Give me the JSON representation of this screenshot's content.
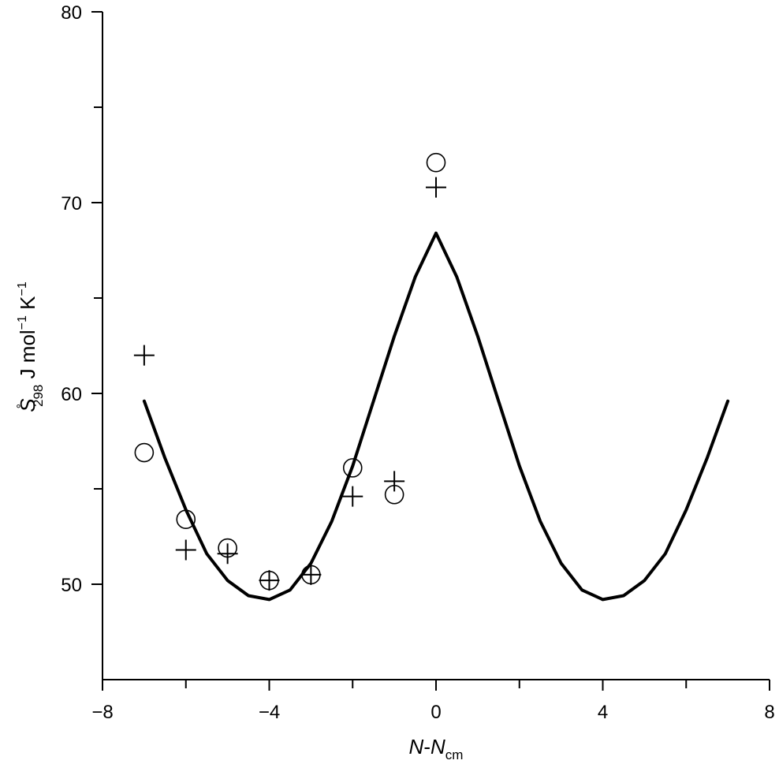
{
  "chart_data": {
    "type": "scatter",
    "xlabel": {
      "main": "N",
      "dash": "-",
      "main2": "N",
      "sub": "cm"
    },
    "ylabel": {
      "symbol": "S",
      "sup": "°",
      "sub": "298",
      "units": " J mol",
      "exp1": "−1",
      "k": " K",
      "exp2": "−1"
    },
    "xlim": [
      -8,
      8
    ],
    "ylim": [
      45,
      80
    ],
    "x_major_ticks": [
      -8,
      -4,
      0,
      4,
      8
    ],
    "x_tick_labels": [
      "−8",
      "−4",
      "0",
      "4",
      "8"
    ],
    "x_minor_ticks": [
      -6,
      -2,
      2,
      6
    ],
    "y_major_ticks": [
      50,
      60,
      70,
      80
    ],
    "y_tick_labels": [
      "50",
      "60",
      "70",
      "80"
    ],
    "y_minor_ticks": [
      55,
      65,
      75
    ],
    "grid": false,
    "series": [
      {
        "marker": "circle",
        "x": [
          -7,
          -6,
          -5,
          -4,
          -3,
          -2,
          -1,
          0
        ],
        "y": [
          56.9,
          53.4,
          51.9,
          50.2,
          50.5,
          56.1,
          54.7,
          72.1
        ]
      },
      {
        "marker": "plus",
        "x": [
          -7,
          -6,
          -5,
          -4,
          -3,
          -2,
          -1,
          0
        ],
        "y": [
          62.0,
          51.8,
          51.6,
          50.2,
          50.5,
          54.6,
          55.4,
          70.8
        ]
      },
      {
        "marker": "line",
        "x": [
          -7,
          -6.5,
          -6,
          -5.5,
          -5,
          -4.5,
          -4,
          -3.5,
          -3,
          -2.5,
          -2,
          -1.5,
          -1,
          -0.5,
          0,
          0.5,
          1,
          1.5,
          2,
          2.5,
          3,
          3.5,
          4,
          4.5,
          5,
          5.5,
          6,
          6.5,
          7
        ],
        "y": [
          59.6,
          56.6,
          53.9,
          51.6,
          50.2,
          49.4,
          49.2,
          49.7,
          51.1,
          53.3,
          56.2,
          59.6,
          63.0,
          66.1,
          68.4,
          66.1,
          63.0,
          59.6,
          56.2,
          53.3,
          51.1,
          49.7,
          49.2,
          49.4,
          50.2,
          51.6,
          53.9,
          56.6,
          59.6
        ]
      }
    ]
  }
}
